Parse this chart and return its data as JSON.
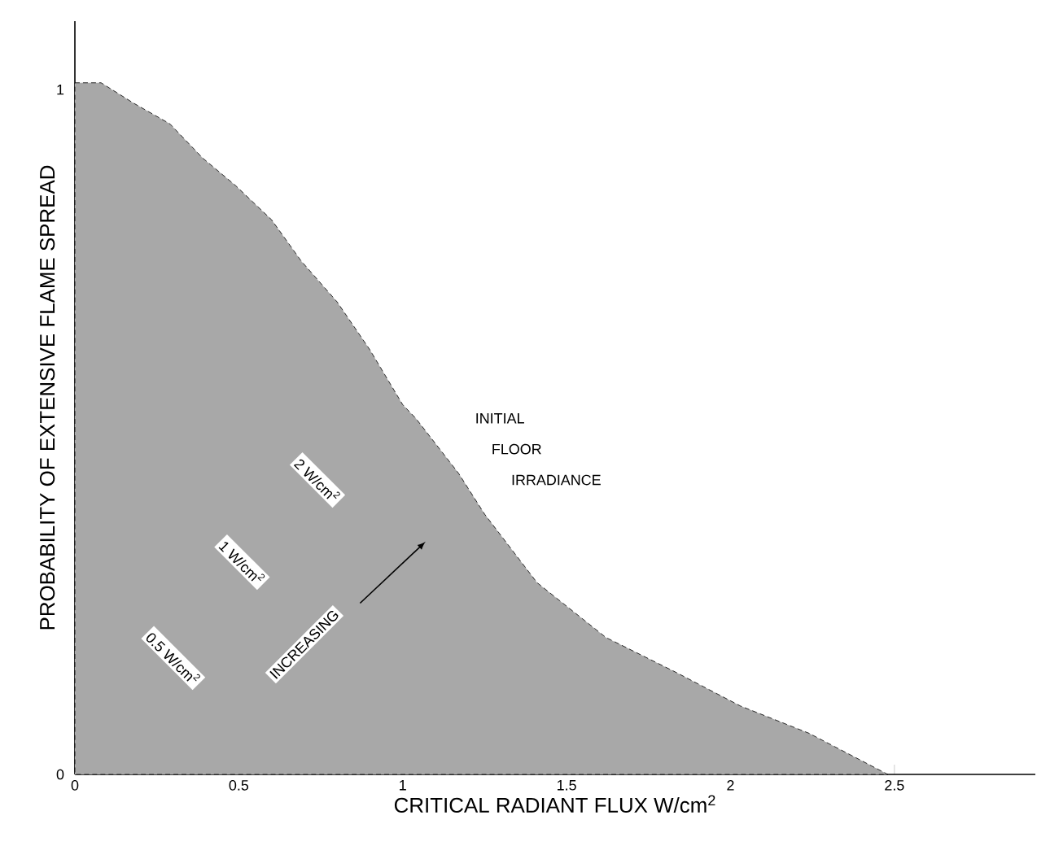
{
  "chart_data": {
    "type": "area",
    "xlabel": "CRITICAL RADIANT FLUX W/cm$^{2}$",
    "ylabel": "PROBABILITY OF EXTENSIVE FLAME SPREAD",
    "x": [
      0,
      0.08,
      0.18,
      0.29,
      0.39,
      0.49,
      0.6,
      0.69,
      0.8,
      0.9,
      1.0,
      1.04,
      1.17,
      1.25,
      1.41,
      1.62,
      1.83,
      2.03,
      2.24,
      2.44,
      2.48
    ],
    "values": [
      1.01,
      1.01,
      0.98,
      0.95,
      0.9,
      0.86,
      0.81,
      0.75,
      0.69,
      0.62,
      0.54,
      0.52,
      0.44,
      0.38,
      0.28,
      0.2,
      0.15,
      0.1,
      0.06,
      0.01,
      0.0
    ],
    "color": "#a8a8a8",
    "xlim": [
      0,
      2.93
    ],
    "ylim": [
      0,
      1.1
    ],
    "xticks": [
      0,
      0.5,
      1,
      1.5,
      2,
      2.5
    ],
    "yticks": [
      0,
      1
    ],
    "grid": false,
    "annotations": [
      "INITIAL",
      "FLOOR",
      "IRRADIANCE",
      "2 W/cm$^{2}$",
      "1 W/cm$^{2}$",
      "0.5 W/cm$^{2}$",
      "INCREASING"
    ]
  }
}
